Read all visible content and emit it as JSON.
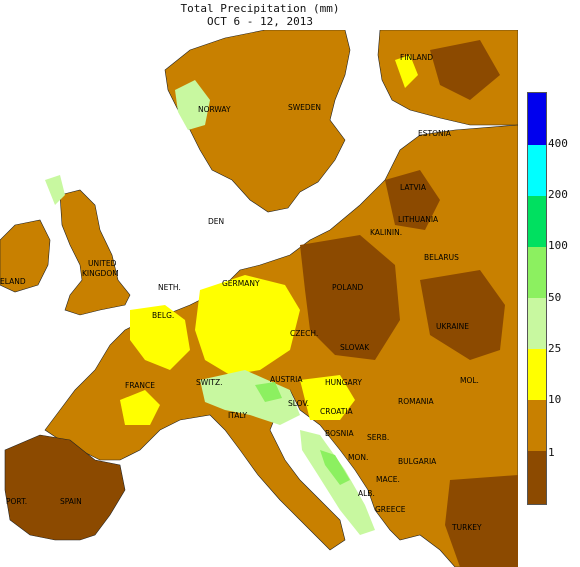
{
  "title": {
    "line1": "Total Precipitation (mm)",
    "line2": "OCT 6 - 12, 2013"
  },
  "map": {
    "labels": [
      {
        "text": "FINLAND"
      },
      {
        "text": "NORWAY"
      },
      {
        "text": "SWEDEN"
      },
      {
        "text": "ESTONIA"
      },
      {
        "text": "LATVIA"
      },
      {
        "text": "LITHUANIA"
      },
      {
        "text": "KALININ."
      },
      {
        "text": "BELARUS"
      },
      {
        "text": "DEN"
      },
      {
        "text": "UNITED"
      },
      {
        "text": "KINGDOM"
      },
      {
        "text": "ELAND"
      },
      {
        "text": "NETH."
      },
      {
        "text": "GERMANY"
      },
      {
        "text": "POLAND"
      },
      {
        "text": "BELG."
      },
      {
        "text": "CZECH."
      },
      {
        "text": "SLOVAK"
      },
      {
        "text": "UKRAINE"
      },
      {
        "text": "FRANCE"
      },
      {
        "text": "SWITZ."
      },
      {
        "text": "AUSTRIA"
      },
      {
        "text": "HUNGARY"
      },
      {
        "text": "MOL."
      },
      {
        "text": "SLOV."
      },
      {
        "text": "ROMANIA"
      },
      {
        "text": "ITALY"
      },
      {
        "text": "CROATIA"
      },
      {
        "text": "BOSNIA"
      },
      {
        "text": "SERB."
      },
      {
        "text": "MON."
      },
      {
        "text": "BULGARIA"
      },
      {
        "text": "MACE."
      },
      {
        "text": "PORT."
      },
      {
        "text": "SPAIN"
      },
      {
        "text": "ALB."
      },
      {
        "text": "GREECE"
      },
      {
        "text": "TURKEY"
      }
    ]
  },
  "legend": {
    "bins": [
      {
        "label": "",
        "color": "#0000ee"
      },
      {
        "label": "400",
        "color": "#00ffff"
      },
      {
        "label": "200",
        "color": "#00e060"
      },
      {
        "label": "100",
        "color": "#8cf060"
      },
      {
        "label": "50",
        "color": "#c8f8a0"
      },
      {
        "label": "25",
        "color": "#ffff00"
      },
      {
        "label": "10",
        "color": "#c88000"
      },
      {
        "label": "1",
        "color": "#8c4a00"
      }
    ]
  }
}
